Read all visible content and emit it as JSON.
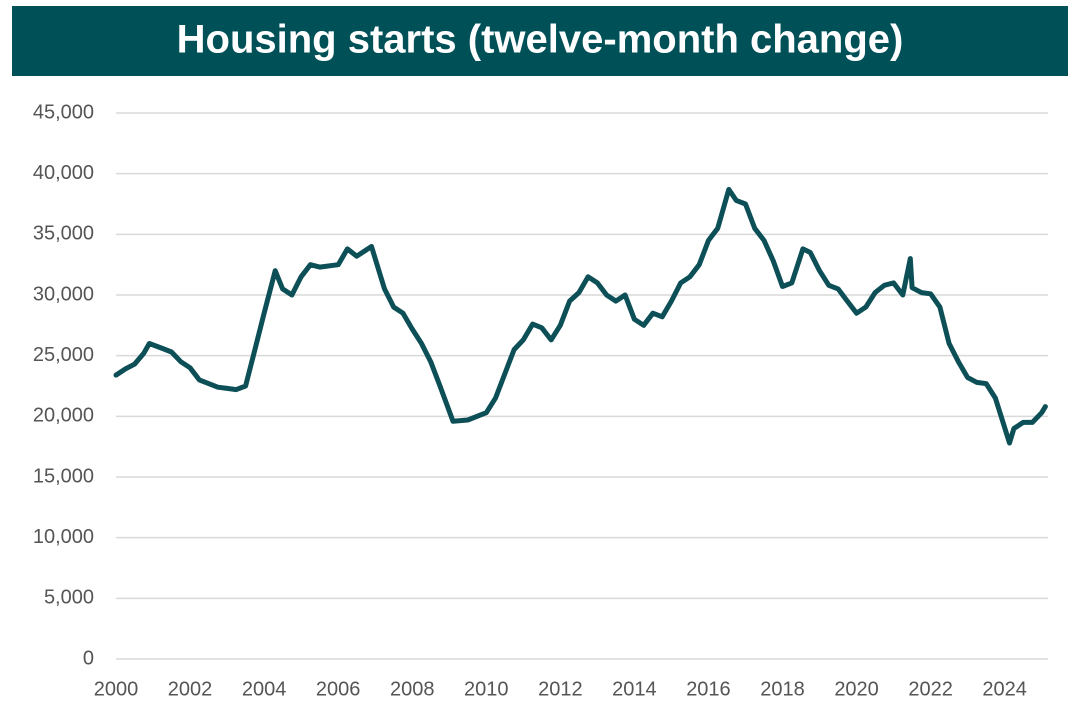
{
  "chart_data": {
    "type": "line",
    "title": "Housing starts (twelve-month change)",
    "color": "#0d4f57",
    "grid": true,
    "x": [
      2000,
      2000.25,
      2000.5,
      2000.75,
      2000.9,
      2001.25,
      2001.5,
      2001.75,
      2002,
      2002.25,
      2002.5,
      2002.75,
      2003,
      2003.25,
      2003.5,
      2003.75,
      2004,
      2004.3,
      2004.5,
      2004.75,
      2005,
      2005.25,
      2005.5,
      2006,
      2006.25,
      2006.5,
      2006.9,
      2007.1,
      2007.25,
      2007.5,
      2007.75,
      2008,
      2008.25,
      2008.5,
      2008.75,
      2009.1,
      2009.5,
      2010,
      2010.25,
      2010.5,
      2010.75,
      2011,
      2011.25,
      2011.5,
      2011.75,
      2012,
      2012.25,
      2012.5,
      2012.75,
      2013,
      2013.25,
      2013.5,
      2013.75,
      2014,
      2014.25,
      2014.5,
      2014.75,
      2015,
      2015.25,
      2015.5,
      2015.75,
      2016,
      2016.25,
      2016.55,
      2016.75,
      2017,
      2017.25,
      2017.5,
      2017.75,
      2018,
      2018.25,
      2018.55,
      2018.75,
      2019,
      2019.25,
      2019.5,
      2019.75,
      2020,
      2020.25,
      2020.5,
      2020.75,
      2021,
      2021.25,
      2021.45,
      2021.5,
      2021.75,
      2022,
      2022.25,
      2022.5,
      2022.75,
      2023,
      2023.25,
      2023.5,
      2023.75,
      2024.13,
      2024.25,
      2024.5,
      2024.75,
      2025,
      2025.1
    ],
    "values": [
      23400,
      23900,
      24300,
      25200,
      26000,
      25600,
      25300,
      24500,
      24000,
      23000,
      22700,
      22400,
      22300,
      22200,
      22500,
      25500,
      28500,
      32000,
      30500,
      30000,
      31500,
      32500,
      32300,
      32500,
      33800,
      33200,
      34000,
      32000,
      30500,
      29000,
      28500,
      27200,
      26000,
      24500,
      22500,
      19600,
      19700,
      20300,
      21500,
      23500,
      25500,
      26300,
      27600,
      27300,
      26300,
      27500,
      29500,
      30200,
      31500,
      31000,
      30000,
      29500,
      30000,
      28000,
      27500,
      28500,
      28200,
      29500,
      31000,
      31500,
      32500,
      34500,
      35500,
      38700,
      37800,
      37500,
      35500,
      34500,
      32800,
      30700,
      31000,
      33800,
      33500,
      32000,
      30800,
      30500,
      29500,
      28500,
      29000,
      30200,
      30800,
      31000,
      30000,
      33000,
      30600,
      30200,
      30100,
      29000,
      26000,
      24500,
      23200,
      22800,
      22700,
      21500,
      17800,
      19000,
      19500,
      19500,
      20300,
      20800
    ],
    "xlim": [
      2000,
      2025.17
    ],
    "xticks": [
      2000,
      2002,
      2004,
      2006,
      2008,
      2010,
      2012,
      2014,
      2016,
      2018,
      2020,
      2022,
      2024
    ],
    "ylim": [
      0,
      45000
    ],
    "yticks": [
      0,
      {
        "value": 5000,
        "label": "5,000"
      },
      {
        "value": 10000,
        "label": "10,000"
      },
      {
        "value": 15000,
        "label": "15,000"
      },
      {
        "value": 20000,
        "label": "20,000"
      },
      {
        "value": 25000,
        "label": "25,000"
      },
      {
        "value": 30000,
        "label": "30,000"
      },
      {
        "value": 35000,
        "label": "35,000"
      },
      {
        "value": 40000,
        "label": "40,000"
      },
      {
        "value": 45000,
        "label": "45,000"
      }
    ]
  }
}
